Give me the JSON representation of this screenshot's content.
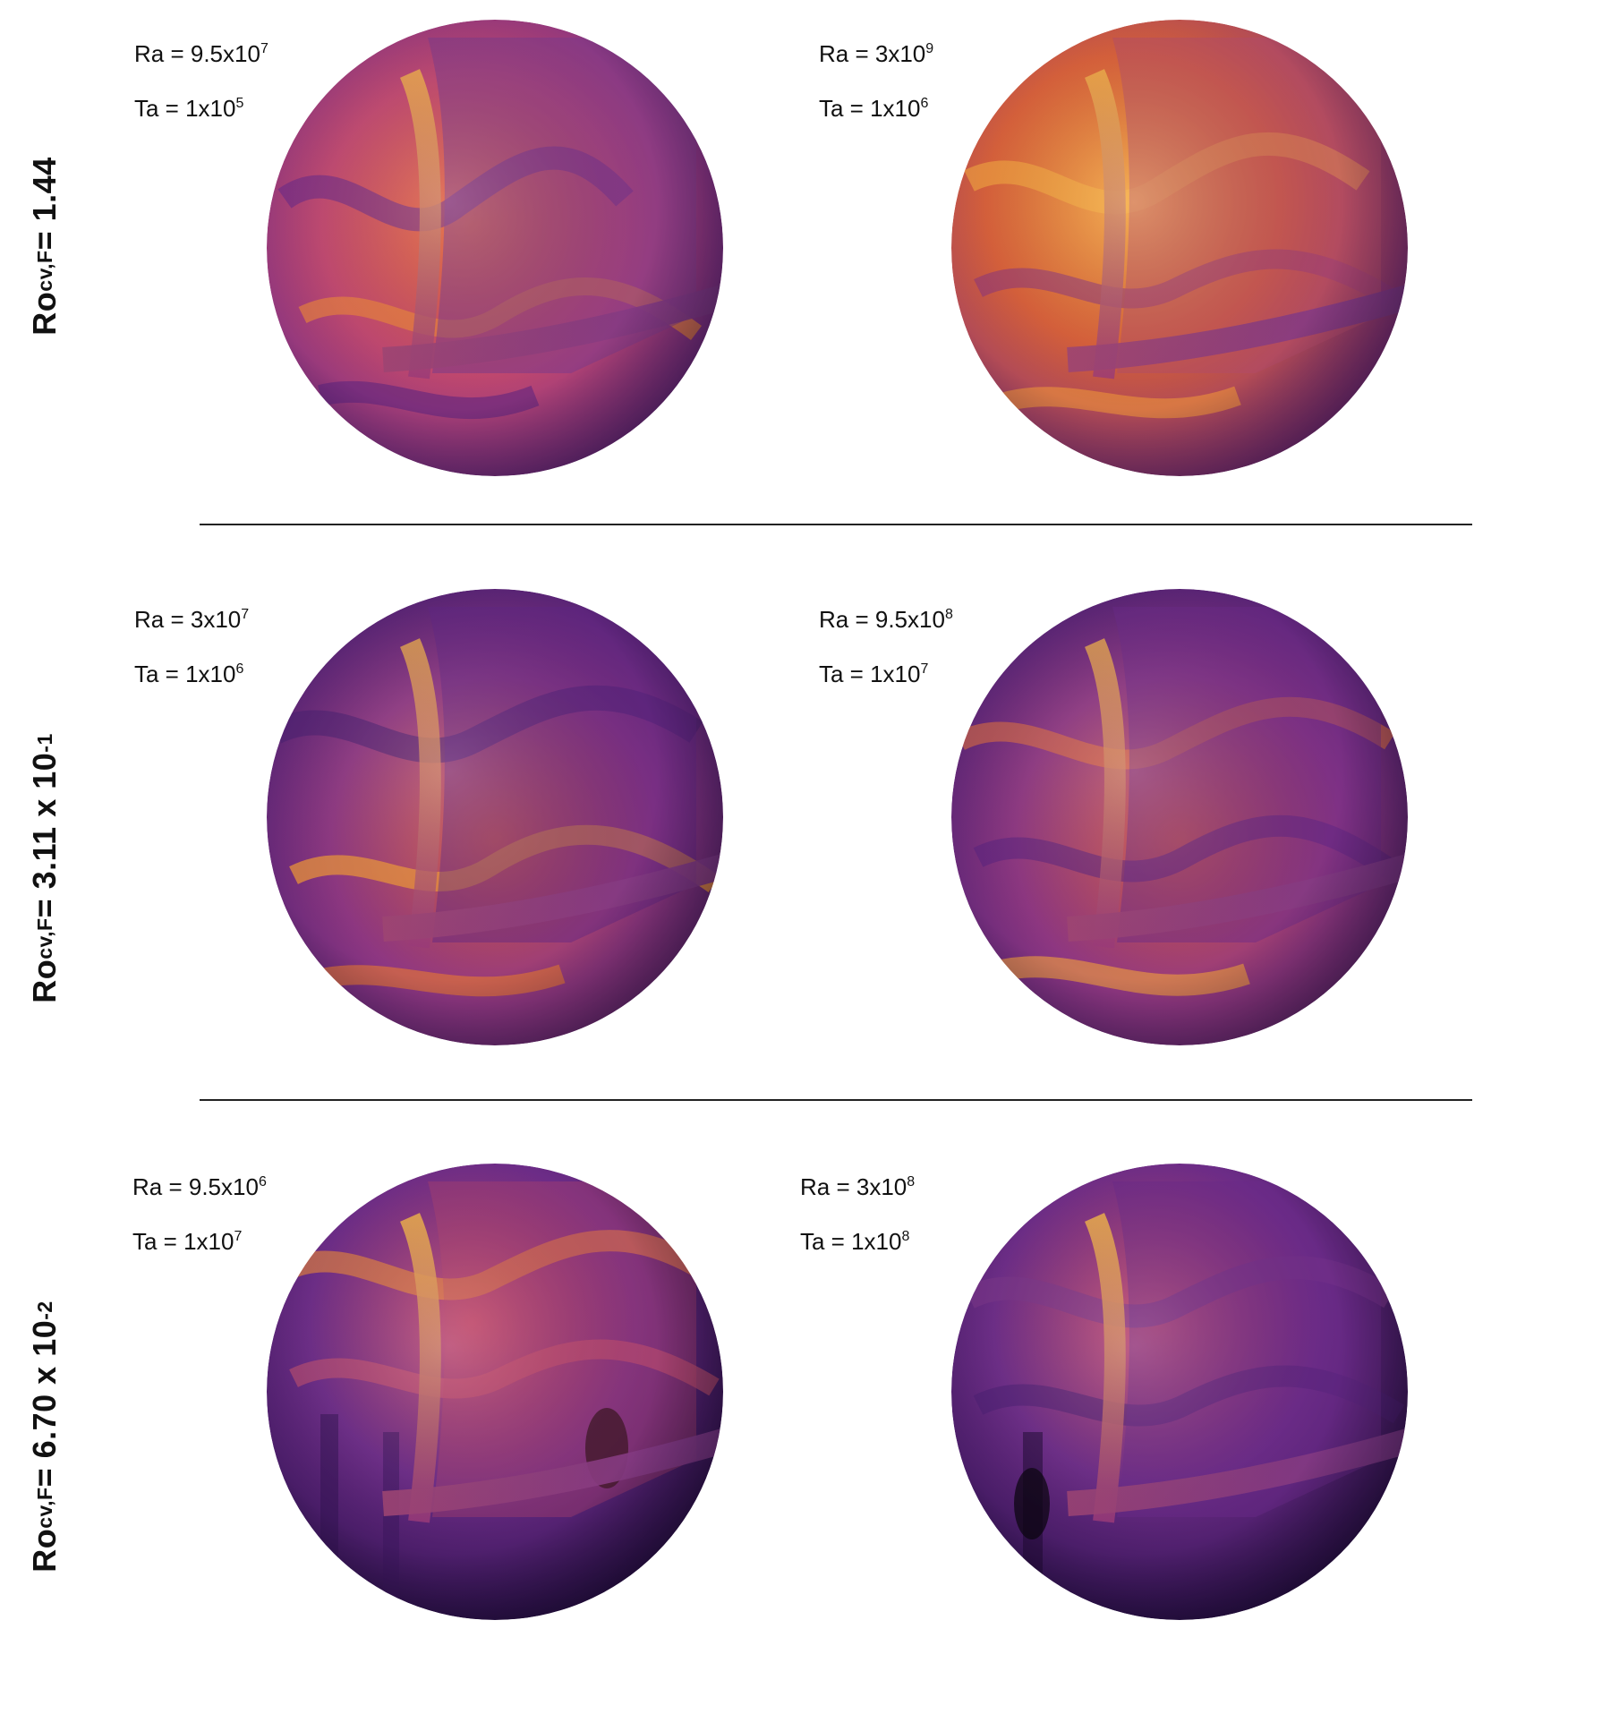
{
  "rows": [
    {
      "label": {
        "base": "Ro",
        "sub": "cv,F",
        "mid": " = 1.44",
        "sup": ""
      },
      "panels": [
        {
          "ra": {
            "pre": "Ra = 9.5x10",
            "exp": "7"
          },
          "ta": {
            "pre": "Ta = 1x10",
            "exp": "5"
          }
        },
        {
          "ra": {
            "pre": "Ra = 3x10",
            "exp": "9"
          },
          "ta": {
            "pre": "Ta = 1x10",
            "exp": "6"
          }
        }
      ]
    },
    {
      "label": {
        "base": "Ro",
        "sub": "cv,F",
        "mid": " = 3.11 x 10",
        "sup": "-1"
      },
      "panels": [
        {
          "ra": {
            "pre": "Ra = 3x10",
            "exp": "7"
          },
          "ta": {
            "pre": "Ta = 1x10",
            "exp": "6"
          }
        },
        {
          "ra": {
            "pre": "Ra = 9.5x10",
            "exp": "8"
          },
          "ta": {
            "pre": "Ta = 1x10",
            "exp": "7"
          }
        }
      ]
    },
    {
      "label": {
        "base": "Ro",
        "sub": "cv,F",
        "mid": " = 6.70 x 10",
        "sup": "-2"
      },
      "panels": [
        {
          "ra": {
            "pre": "Ra = 9.5x10",
            "exp": "6"
          },
          "ta": {
            "pre": "Ta = 1x10",
            "exp": "7"
          }
        },
        {
          "ra": {
            "pre": "Ra = 3x10",
            "exp": "8"
          },
          "ta": {
            "pre": "Ta = 1x10",
            "exp": "8"
          }
        }
      ]
    }
  ],
  "colors": {
    "hot": "#fcd34d",
    "warm": "#f07a2a",
    "mid": "#c2406a",
    "cool": "#6a2a8a",
    "dark": "#2a0d40"
  }
}
